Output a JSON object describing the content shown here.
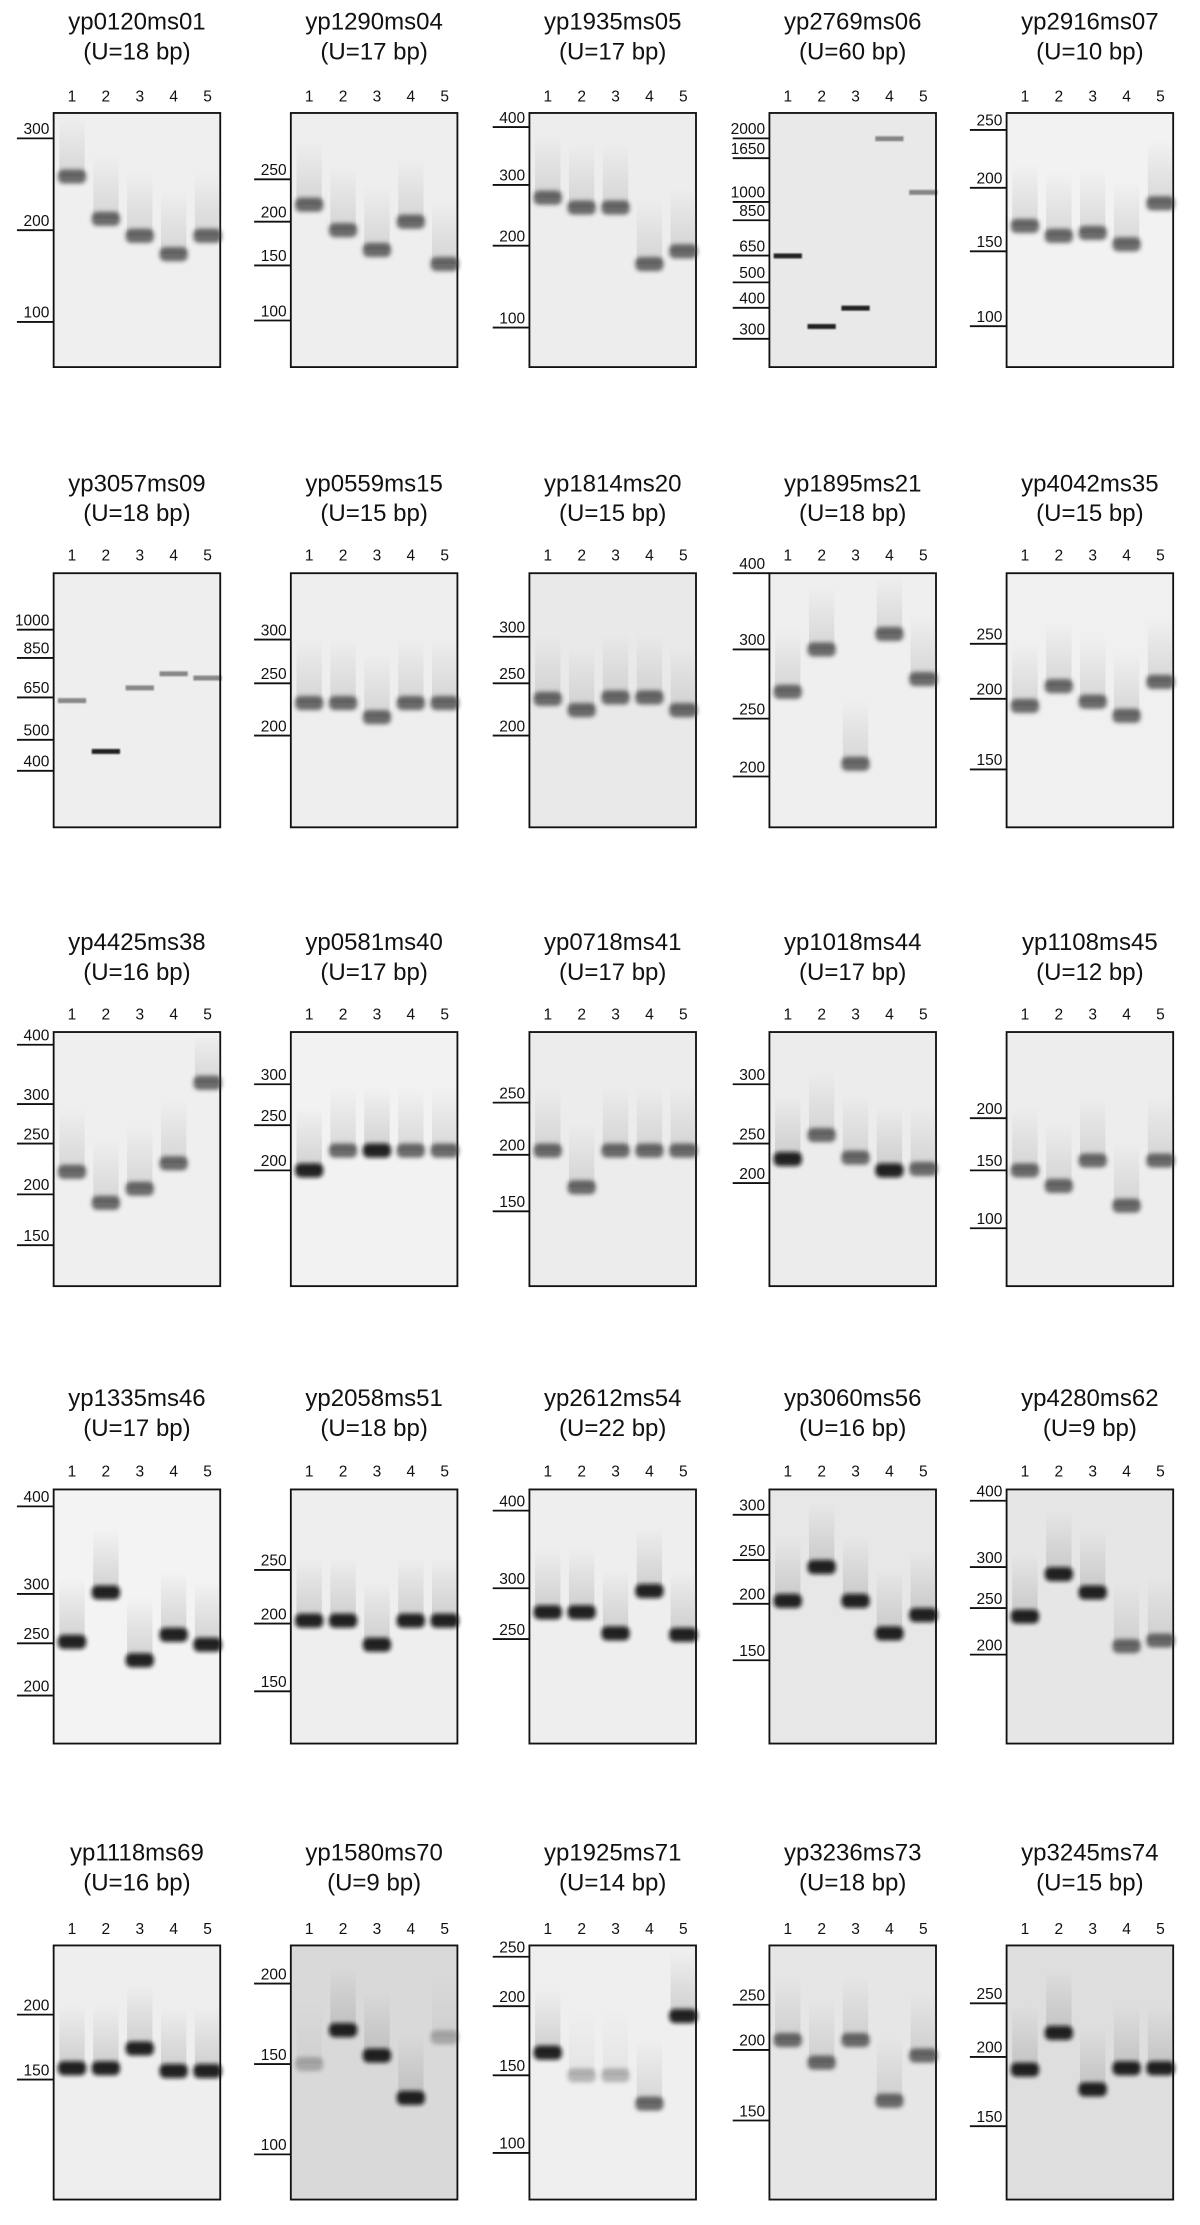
{
  "lanes": [
    "1",
    "2",
    "3",
    "4",
    "5"
  ],
  "panels": [
    {
      "title": "yp0120ms01",
      "subtitle": "(U=18 bp)",
      "markers": [
        "300",
        "200",
        "100"
      ]
    },
    {
      "title": "yp1290ms04",
      "subtitle": "(U=17 bp)",
      "markers": [
        "250",
        "200",
        "150",
        "100"
      ]
    },
    {
      "title": "yp1935ms05",
      "subtitle": "(U=17 bp)",
      "markers": [
        "400",
        "300",
        "200",
        "100"
      ]
    },
    {
      "title": "yp2769ms06",
      "subtitle": "(U=60 bp)",
      "markers": [
        "2000",
        "1650",
        "1000",
        "850",
        "650",
        "500",
        "400",
        "300"
      ]
    },
    {
      "title": "yp2916ms07",
      "subtitle": "(U=10 bp)",
      "markers": [
        "250",
        "200",
        "150",
        "100"
      ]
    },
    {
      "title": "yp3057ms09",
      "subtitle": "(U=18 bp)",
      "markers": [
        "1000",
        "850",
        "650",
        "500",
        "400"
      ]
    },
    {
      "title": "yp0559ms15",
      "subtitle": "(U=15 bp)",
      "markers": [
        "300",
        "250",
        "200"
      ]
    },
    {
      "title": "yp1814ms20",
      "subtitle": "(U=15 bp)",
      "markers": [
        "300",
        "250",
        "200"
      ]
    },
    {
      "title": "yp1895ms21",
      "subtitle": "(U=18 bp)",
      "markers": [
        "400",
        "300",
        "250",
        "200"
      ]
    },
    {
      "title": "yp4042ms35",
      "subtitle": "(U=15 bp)",
      "markers": [
        "250",
        "200",
        "150"
      ]
    },
    {
      "title": "yp4425ms38",
      "subtitle": "(U=16 bp)",
      "markers": [
        "400",
        "300",
        "250",
        "200",
        "150"
      ]
    },
    {
      "title": "yp0581ms40",
      "subtitle": "(U=17 bp)",
      "markers": [
        "300",
        "250",
        "200"
      ]
    },
    {
      "title": "yp0718ms41",
      "subtitle": "(U=17 bp)",
      "markers": [
        "250",
        "200",
        "150"
      ]
    },
    {
      "title": "yp1018ms44",
      "subtitle": "(U=17 bp)",
      "markers": [
        "300",
        "250",
        "200"
      ]
    },
    {
      "title": "yp1108ms45",
      "subtitle": "(U=12 bp)",
      "markers": [
        "200",
        "150",
        "100"
      ]
    },
    {
      "title": "yp1335ms46",
      "subtitle": "(U=17 bp)",
      "markers": [
        "400",
        "300",
        "250",
        "200"
      ]
    },
    {
      "title": "yp2058ms51",
      "subtitle": "(U=18 bp)",
      "markers": [
        "250",
        "200",
        "150"
      ]
    },
    {
      "title": "yp2612ms54",
      "subtitle": "(U=22 bp)",
      "markers": [
        "400",
        "300",
        "250"
      ]
    },
    {
      "title": "yp3060ms56",
      "subtitle": "(U=16 bp)",
      "markers": [
        "300",
        "250",
        "200",
        "150"
      ]
    },
    {
      "title": "yp4280ms62",
      "subtitle": "(U=9 bp)",
      "markers": [
        "400",
        "300",
        "250",
        "200"
      ]
    },
    {
      "title": "yp1118ms69",
      "subtitle": "(U=16 bp)",
      "markers": [
        "200",
        "150"
      ]
    },
    {
      "title": "yp1580ms70",
      "subtitle": "(U=9 bp)",
      "markers": [
        "200",
        "150",
        "100"
      ]
    },
    {
      "title": "yp1925ms71",
      "subtitle": "(U=14 bp)",
      "markers": [
        "250",
        "200",
        "150",
        "100"
      ]
    },
    {
      "title": "yp3236ms73",
      "subtitle": "(U=18 bp)",
      "markers": [
        "250",
        "200",
        "150"
      ]
    },
    {
      "title": "yp3245ms74",
      "subtitle": "(U=15 bp)",
      "markers": [
        "250",
        "200",
        "150"
      ]
    }
  ]
}
